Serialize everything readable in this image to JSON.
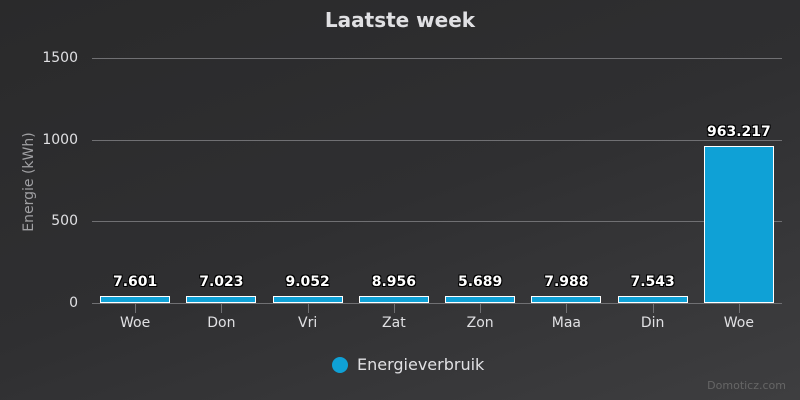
{
  "chart": {
    "title": "Laatste week",
    "ylabel": "Energie (kWh)",
    "yticks": [
      "0",
      "500",
      "1000",
      "1500"
    ],
    "legend_label": "Energieverbruik",
    "credits": "Domoticz.com",
    "bar_color": "#0fa1d6"
  },
  "chart_data": {
    "type": "bar",
    "title": "Laatste week",
    "xlabel": "",
    "ylabel": "Energie (kWh)",
    "ylim": [
      0,
      1500
    ],
    "yticks": [
      0,
      500,
      1000,
      1500
    ],
    "grid": true,
    "legend_position": "bottom",
    "categories": [
      "Woe",
      "Don",
      "Vri",
      "Zat",
      "Zon",
      "Maa",
      "Din",
      "Woe"
    ],
    "series": [
      {
        "name": "Energieverbruik",
        "color": "#0fa1d6",
        "values": [
          7.601,
          7.023,
          9.052,
          8.956,
          5.689,
          7.988,
          7.543,
          963.217
        ],
        "labels": [
          "7.601",
          "7.023",
          "9.052",
          "8.956",
          "5.689",
          "7.988",
          "7.543",
          "963.217"
        ]
      }
    ]
  }
}
